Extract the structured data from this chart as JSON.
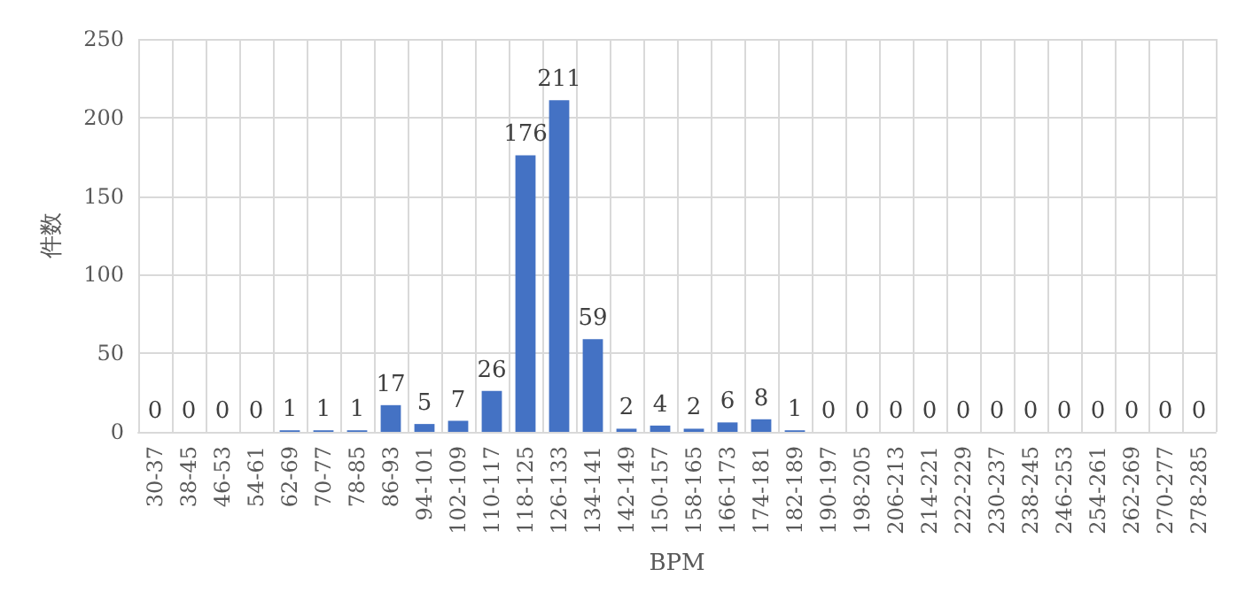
{
  "chart_data": {
    "type": "bar",
    "xlabel": "BPM",
    "ylabel": "件数",
    "categories": [
      "30-37",
      "38-45",
      "46-53",
      "54-61",
      "62-69",
      "70-77",
      "78-85",
      "86-93",
      "94-101",
      "102-109",
      "110-117",
      "118-125",
      "126-133",
      "134-141",
      "142-149",
      "150-157",
      "158-165",
      "166-173",
      "174-181",
      "182-189",
      "190-197",
      "198-205",
      "206-213",
      "214-221",
      "222-229",
      "230-237",
      "238-245",
      "246-253",
      "254-261",
      "262-269",
      "270-277",
      "278-285"
    ],
    "values": [
      0,
      0,
      0,
      0,
      1,
      1,
      1,
      17,
      5,
      7,
      26,
      176,
      211,
      59,
      2,
      4,
      2,
      6,
      8,
      1,
      0,
      0,
      0,
      0,
      0,
      0,
      0,
      0,
      0,
      0,
      0,
      0
    ],
    "color": "#4472c4",
    "ylim": [
      0,
      250
    ],
    "yticks": [
      0,
      50,
      100,
      150,
      200,
      250
    ],
    "grid": true,
    "data_labels": true
  }
}
